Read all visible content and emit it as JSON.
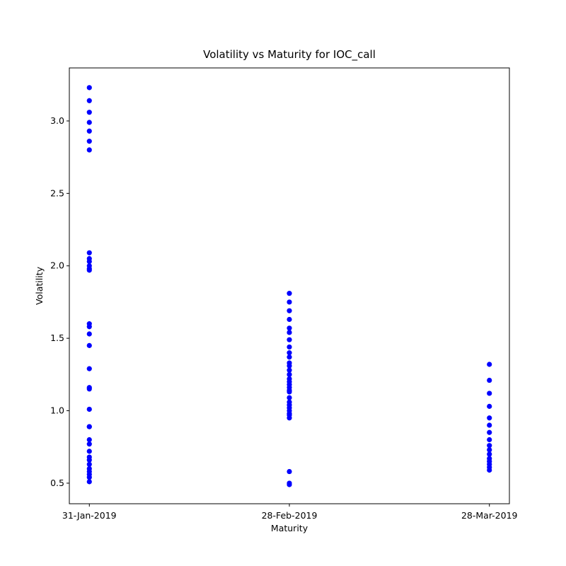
{
  "chart_data": {
    "type": "scatter",
    "title": "Volatility vs Maturity for IOC_call",
    "x_label": "Maturity",
    "y_label": "Volatility",
    "color": "#0000ff",
    "categories": [
      "31-Jan-2019",
      "28-Feb-2019",
      "28-Mar-2019"
    ],
    "values": [
      [
        3.23,
        3.14,
        3.06,
        2.99,
        2.93,
        2.86,
        2.8,
        2.09,
        2.05,
        2.03,
        2.0,
        1.98,
        1.97,
        1.6,
        1.58,
        1.53,
        1.45,
        1.29,
        1.16,
        1.15,
        1.01,
        0.89,
        0.89,
        0.8,
        0.77,
        0.72,
        0.68,
        0.66,
        0.63,
        0.6,
        0.58,
        0.56,
        0.54,
        0.51
      ],
      [
        1.81,
        1.75,
        1.69,
        1.63,
        1.57,
        1.54,
        1.49,
        1.44,
        1.4,
        1.37,
        1.33,
        1.31,
        1.28,
        1.25,
        1.22,
        1.2,
        1.18,
        1.16,
        1.14,
        1.13,
        1.09,
        1.06,
        1.04,
        1.02,
        1.0,
        0.98,
        0.97,
        0.95,
        0.58,
        0.5,
        0.49
      ],
      [
        1.32,
        1.21,
        1.12,
        1.03,
        0.95,
        0.9,
        0.85,
        0.8,
        0.76,
        0.73,
        0.7,
        0.67,
        0.65,
        0.63,
        0.61,
        0.59
      ]
    ],
    "ylim": [
      0.358,
      3.366
    ],
    "yticks": [
      0.5,
      {
        "value": 1,
        "label": "1.0"
      },
      1.5,
      {
        "value": 2,
        "label": "2.0"
      },
      2.5,
      {
        "value": 3,
        "label": "3.0"
      }
    ]
  }
}
